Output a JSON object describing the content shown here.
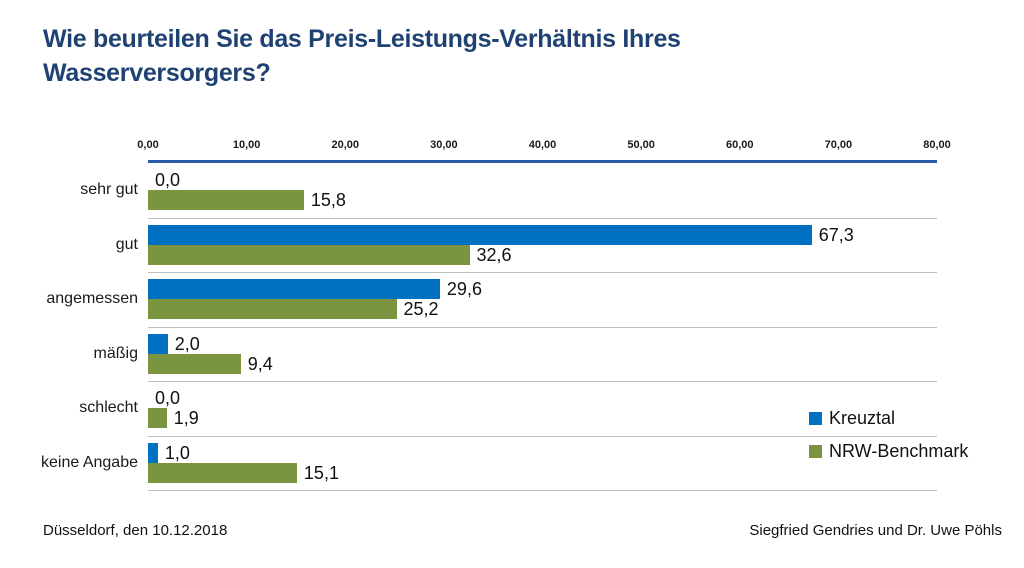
{
  "header": {
    "title_lines": [
      "Wie beurteilen Sie das Preis-Leistungs-Verhältnis Ihres",
      "Wasserversorgers?"
    ]
  },
  "chart_data": {
    "type": "bar",
    "orientation": "horizontal",
    "title": "Wie beurteilen Sie das Preis-Leistungs-Verhältnis Ihres Wasserversorgers?",
    "categories": [
      "sehr gut",
      "gut",
      "angemessen",
      "mäßig",
      "schlecht",
      "keine Angabe"
    ],
    "series": [
      {
        "name": "Kreuztal",
        "color": "#0070C0",
        "values": [
          0.0,
          67.3,
          29.6,
          2.0,
          0.0,
          1.0
        ],
        "labels": [
          "0,0",
          "67,3",
          "29,6",
          "2,0",
          "0,0",
          "1,0"
        ]
      },
      {
        "name": "NRW-Benchmark",
        "color": "#7A9440",
        "values": [
          15.8,
          32.6,
          25.2,
          9.4,
          1.9,
          15.1
        ],
        "labels": [
          "15,8",
          "32,6",
          "25,2",
          "9,4",
          "1,9",
          "15,1"
        ]
      }
    ],
    "x_ticks": [
      "0,00",
      "10,00",
      "20,00",
      "30,00",
      "40,00",
      "50,00",
      "60,00",
      "70,00",
      "80,00"
    ],
    "xlim": [
      0,
      80
    ],
    "xlabel": "",
    "ylabel": "",
    "grid": "horizontal-row-separators-only",
    "legend_position": "right-lower"
  },
  "colors": {
    "title": "#1F4273",
    "axis_line": "#2A5DA9",
    "row_separator": "#BFBFBF",
    "kreuztal": "#0070C0",
    "nrw_benchmark": "#7A9440"
  },
  "footer": {
    "left": "Düsseldorf, den 10.12.2018",
    "right": "Siegfried Gendries und Dr. Uwe Pöhls"
  }
}
